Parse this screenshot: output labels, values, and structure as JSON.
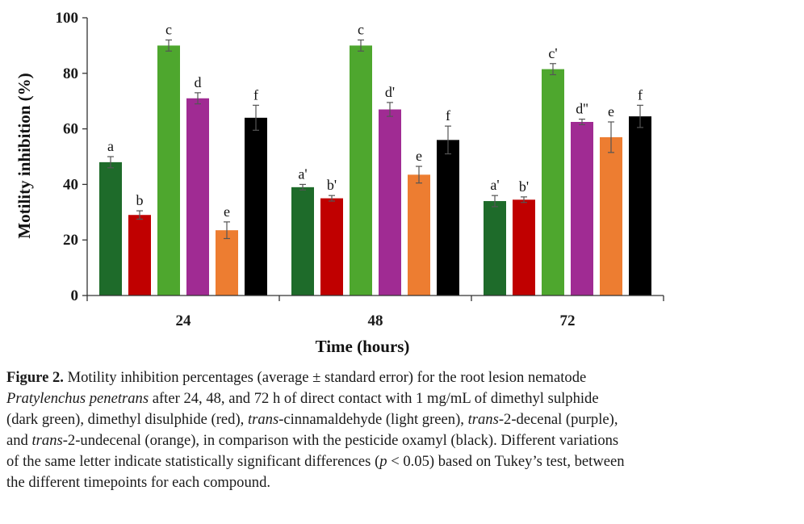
{
  "chart_data": {
    "type": "bar",
    "xlabel": "Time (hours)",
    "ylabel": "Motility inhibition (%)",
    "ylim": [
      0,
      100
    ],
    "yticks": [
      0,
      20,
      40,
      60,
      80,
      100
    ],
    "categories": [
      "24",
      "48",
      "72"
    ],
    "grid": false,
    "series": [
      {
        "color": "#1e6b2a",
        "values": [
          48,
          39,
          34
        ],
        "errors": [
          2,
          1,
          2
        ],
        "labels": [
          "a",
          "a'",
          "a'"
        ]
      },
      {
        "color": "#c00000",
        "values": [
          29,
          35,
          34.5
        ],
        "errors": [
          1.5,
          1,
          1
        ],
        "labels": [
          "b",
          "b'",
          "b'"
        ]
      },
      {
        "color": "#4ea72e",
        "values": [
          90,
          90,
          81.5
        ],
        "errors": [
          2,
          2,
          2
        ],
        "labels": [
          "c",
          "c",
          "c'"
        ]
      },
      {
        "color": "#a02b93",
        "values": [
          71,
          67,
          62.5
        ],
        "errors": [
          2,
          2.5,
          1
        ],
        "labels": [
          "d",
          "d'",
          "d''"
        ]
      },
      {
        "color": "#ed7d31",
        "values": [
          23.5,
          43.5,
          57
        ],
        "errors": [
          3,
          3,
          5.5
        ],
        "labels": [
          "e",
          "e",
          "e"
        ]
      },
      {
        "color": "#000000",
        "values": [
          64,
          56,
          64.5
        ],
        "errors": [
          4.5,
          5,
          4
        ],
        "labels": [
          "f",
          "f",
          "f"
        ]
      }
    ]
  },
  "caption": {
    "figure_label": "Figure 2.",
    "l1_text": " Motility inhibition percentages (average ± standard error) for the root lesion nematode",
    "l2_species": "Pratylenchus penetrans",
    "l2_text": " after 24, 48, and 72 h of direct contact with 1 mg/mL of dimethyl sulphide",
    "l3_a": "(dark green), dimethyl disulphide (red), ",
    "l3_trans1": "trans",
    "l3_b": "-cinnamaldehyde (light green), ",
    "l3_trans2": "trans",
    "l3_c": "-2-decenal (purple),",
    "l4_a": "and ",
    "l4_trans": "trans",
    "l4_b": "-2-undecenal (orange), in comparison with the pesticide oxamyl (black). Different variations",
    "l5_a": "of the same letter indicate statistically significant differences (",
    "l5_p": "p",
    "l5_b": " < 0.05) based on Tukey’s test, between",
    "l6": "the different timepoints for each compound."
  }
}
